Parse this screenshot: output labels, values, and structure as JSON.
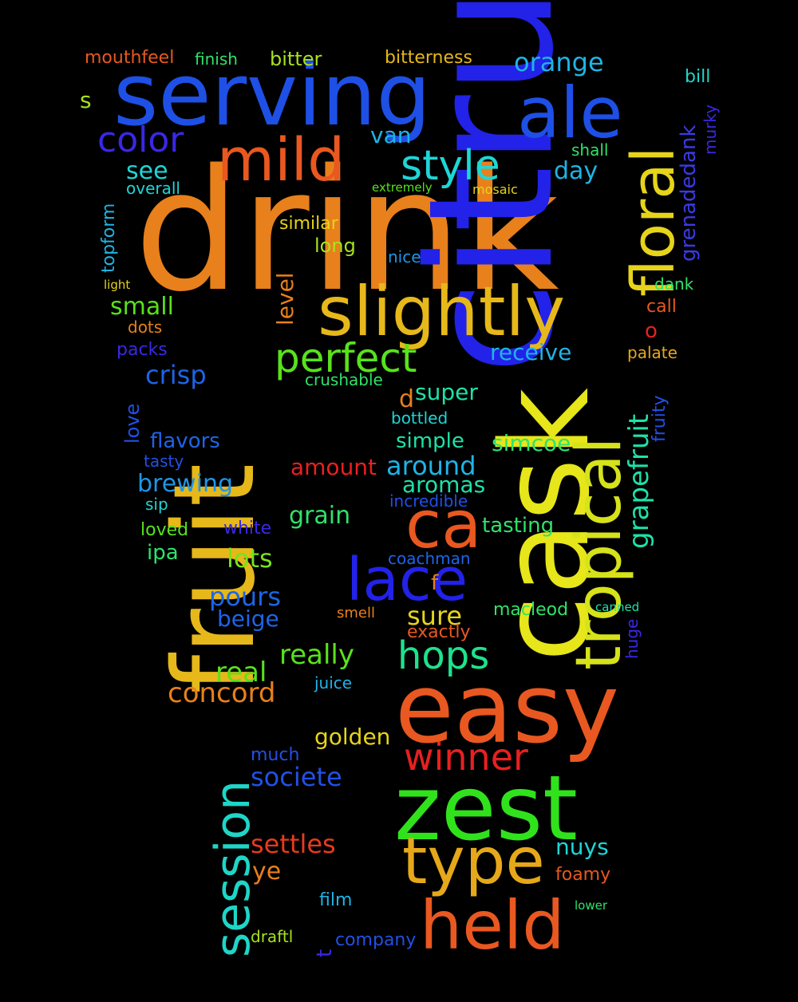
{
  "words": [
    {
      "text": "drink",
      "color": "#E8801C"
    },
    {
      "text": "citrus",
      "color": "#2222E8"
    },
    {
      "text": "cask",
      "color": "#E6E61A"
    },
    {
      "text": "fruit",
      "color": "#E6B81A"
    },
    {
      "text": "serving",
      "color": "#1E50E6"
    },
    {
      "text": "easy",
      "color": "#E85820"
    },
    {
      "text": "zest",
      "color": "#30E21C"
    },
    {
      "text": "ale",
      "color": "#1E50E6"
    },
    {
      "text": "slightly",
      "color": "#E6B81A"
    },
    {
      "text": "tropical",
      "color": "#D6E21A"
    },
    {
      "text": "floral",
      "color": "#E6D41A"
    },
    {
      "text": "mild",
      "color": "#E85820"
    },
    {
      "text": "held",
      "color": "#E85820"
    },
    {
      "text": "type",
      "color": "#E6A81A"
    },
    {
      "text": "lace",
      "color": "#2222E8"
    },
    {
      "text": "ca",
      "color": "#E85820"
    },
    {
      "text": "session",
      "color": "#1ED6C8"
    },
    {
      "text": "style",
      "color": "#1ED6D6"
    },
    {
      "text": "perfect",
      "color": "#58E21C"
    },
    {
      "text": "hops",
      "color": "#1EE28C"
    },
    {
      "text": "winner",
      "color": "#E82020"
    },
    {
      "text": "color",
      "color": "#3A28E6"
    },
    {
      "text": "orange",
      "color": "#1EB4E6"
    },
    {
      "text": "grapefruit",
      "color": "#1EE2A8"
    },
    {
      "text": "grenadedank",
      "color": "#3A3AE6"
    },
    {
      "text": "concord",
      "color": "#E8801C"
    },
    {
      "text": "settles",
      "color": "#E83A1C"
    },
    {
      "text": "pours",
      "color": "#1E64E6"
    },
    {
      "text": "beige",
      "color": "#1E64E6"
    },
    {
      "text": "really",
      "color": "#58E21C"
    },
    {
      "text": "sure",
      "color": "#E6D41A"
    },
    {
      "text": "around",
      "color": "#1EB4E6"
    },
    {
      "text": "aromas",
      "color": "#1EE2A8"
    },
    {
      "text": "lots",
      "color": "#78E21C"
    },
    {
      "text": "real",
      "color": "#58E21C"
    },
    {
      "text": "societe",
      "color": "#2250E6"
    },
    {
      "text": "brewing",
      "color": "#1E96E6"
    },
    {
      "text": "crisp",
      "color": "#1E64E6"
    },
    {
      "text": "small",
      "color": "#58E21C"
    },
    {
      "text": "see",
      "color": "#1ED6D6"
    },
    {
      "text": "day",
      "color": "#1EB4E6"
    },
    {
      "text": "van",
      "color": "#1EB4E6"
    },
    {
      "text": "level",
      "color": "#E8801C"
    },
    {
      "text": "receive",
      "color": "#1EB4E6"
    },
    {
      "text": "super",
      "color": "#1EE2A8"
    },
    {
      "text": "simple",
      "color": "#1EE2A8"
    },
    {
      "text": "simcoe",
      "color": "#30E26A"
    },
    {
      "text": "grain",
      "color": "#30E26A"
    },
    {
      "text": "tasting",
      "color": "#30E26A"
    },
    {
      "text": "amount",
      "color": "#E82020"
    },
    {
      "text": "golden",
      "color": "#E6D41A"
    },
    {
      "text": "nuys",
      "color": "#1ED6D6"
    },
    {
      "text": "ye",
      "color": "#E8801C"
    },
    {
      "text": "flavors",
      "color": "#1E64E6"
    },
    {
      "text": "bitterness",
      "color": "#E6B81A"
    },
    {
      "text": "mouthfeel",
      "color": "#E85820"
    },
    {
      "text": "bitter",
      "color": "#A8E21C"
    },
    {
      "text": "finish",
      "color": "#30E26A"
    },
    {
      "text": "bill",
      "color": "#1ED6C8"
    },
    {
      "text": "murky",
      "color": "#3A28E6"
    },
    {
      "text": "fruity",
      "color": "#2250E6"
    },
    {
      "text": "topform",
      "color": "#1EB4E6"
    },
    {
      "text": "love",
      "color": "#2250E6"
    },
    {
      "text": "macleod",
      "color": "#30E26A"
    },
    {
      "text": "s",
      "color": "#A8E21C"
    },
    {
      "text": "d",
      "color": "#E8801C"
    },
    {
      "text": "o",
      "color": "#E82020"
    },
    {
      "text": "f",
      "color": "#E8801C"
    },
    {
      "text": "t",
      "color": "#3A28E6"
    },
    {
      "text": "shall",
      "color": "#30E26A"
    },
    {
      "text": "overall",
      "color": "#1ED6D6"
    },
    {
      "text": "extremely",
      "color": "#58E21C"
    },
    {
      "text": "mosaic",
      "color": "#E6D41A"
    },
    {
      "text": "similar",
      "color": "#E6D41A"
    },
    {
      "text": "long",
      "color": "#A8E21C"
    },
    {
      "text": "nice",
      "color": "#1E96E6"
    },
    {
      "text": "light",
      "color": "#E6D41A"
    },
    {
      "text": "dank",
      "color": "#30E26A"
    },
    {
      "text": "call",
      "color": "#E85820"
    },
    {
      "text": "palate",
      "color": "#E6A81A"
    },
    {
      "text": "dots",
      "color": "#E8801C"
    },
    {
      "text": "packs",
      "color": "#3A28E6"
    },
    {
      "text": "crushable",
      "color": "#30E26A"
    },
    {
      "text": "bottled",
      "color": "#1ED6D6"
    },
    {
      "text": "tasty",
      "color": "#2250E6"
    },
    {
      "text": "sip",
      "color": "#1ED6D6"
    },
    {
      "text": "incredible",
      "color": "#2250E6"
    },
    {
      "text": "loved",
      "color": "#58E21C"
    },
    {
      "text": "white",
      "color": "#3A28E6"
    },
    {
      "text": "ipa",
      "color": "#30E26A"
    },
    {
      "text": "coachman",
      "color": "#1E64E6"
    },
    {
      "text": "smell",
      "color": "#E8801C"
    },
    {
      "text": "exactly",
      "color": "#E85820"
    },
    {
      "text": "canned",
      "color": "#1EE2A8"
    },
    {
      "text": "huge",
      "color": "#3A28E6"
    },
    {
      "text": "juice",
      "color": "#1EB4E6"
    },
    {
      "text": "much",
      "color": "#2250E6"
    },
    {
      "text": "foamy",
      "color": "#E85820"
    },
    {
      "text": "film",
      "color": "#1EB4E6"
    },
    {
      "text": "lower",
      "color": "#30E26A"
    },
    {
      "text": "draftl",
      "color": "#A8E21C"
    },
    {
      "text": "company",
      "color": "#2250E6"
    }
  ]
}
